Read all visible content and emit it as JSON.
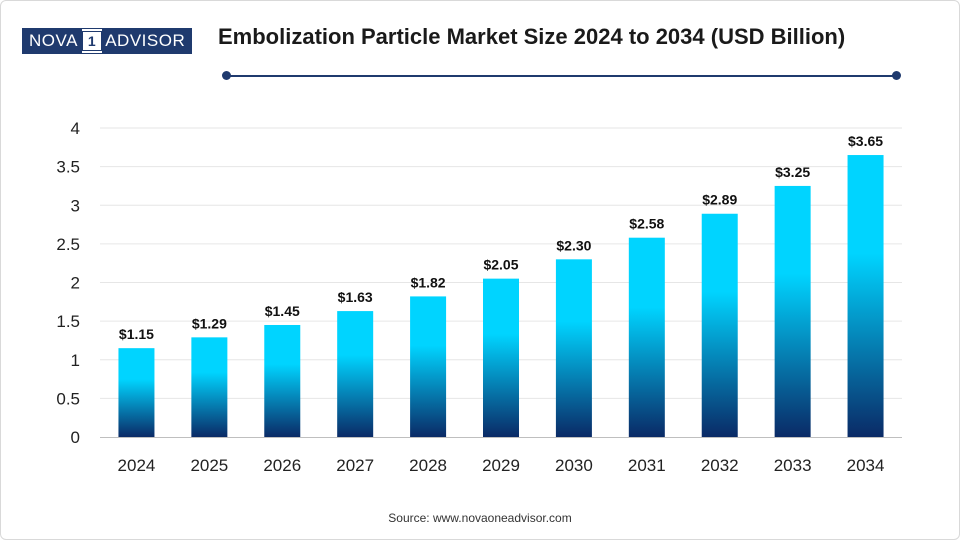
{
  "brand": {
    "logo_left": "NOVA",
    "logo_mid": "1",
    "logo_right": "ADVISOR"
  },
  "colors": {
    "bar_top": "#00d4ff",
    "bar_bottom": "#0a2a66",
    "accent": "#1f3a6e",
    "grid": "#e6e6e6"
  },
  "source": "Source: www.novaoneadvisor.com",
  "chart_data": {
    "type": "bar",
    "title": "Embolization Particle Market Size 2024 to 2034 (USD Billion)",
    "xlabel": "",
    "ylabel": "",
    "categories": [
      "2024",
      "2025",
      "2026",
      "2027",
      "2028",
      "2029",
      "2030",
      "2031",
      "2032",
      "2033",
      "2034"
    ],
    "values": [
      1.15,
      1.29,
      1.45,
      1.63,
      1.82,
      2.05,
      2.3,
      2.58,
      2.89,
      3.25,
      3.65
    ],
    "value_labels": [
      "$1.15",
      "$1.29",
      "$1.45",
      "$1.63",
      "$1.82",
      "$2.05",
      "$2.30",
      "$2.58",
      "$2.89",
      "$3.25",
      "$3.65"
    ],
    "ylim": [
      0,
      4
    ],
    "yticks": [
      0,
      0.5,
      1,
      1.5,
      2,
      2.5,
      3,
      3.5,
      4
    ],
    "ytick_labels": [
      "0",
      "0.5",
      "1",
      "1.5",
      "2",
      "2.5",
      "3",
      "3.5",
      "4"
    ],
    "grid": true,
    "legend": "none"
  }
}
